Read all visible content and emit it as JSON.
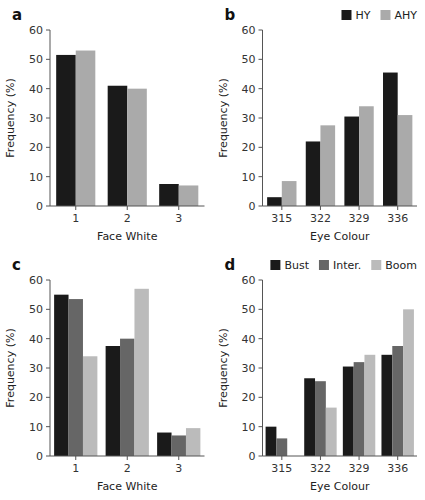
{
  "chart_data": [
    {
      "type": "bar",
      "title": "a",
      "categories": [
        "1",
        "2",
        "3"
      ],
      "series": [
        {
          "color": "#1a1a1a",
          "values": [
            51.5,
            41.0,
            7.5
          ]
        },
        {
          "color": "#aaaaaa",
          "values": [
            53.0,
            40.0,
            7.0
          ]
        }
      ],
      "x_label": "Face White",
      "y_label": "Frequency (%)",
      "ylim": [
        0,
        60
      ],
      "yticks": [
        0,
        10,
        20,
        30,
        40,
        50,
        60
      ],
      "grid": false
    },
    {
      "type": "bar",
      "title": "b",
      "categories": [
        "315",
        "322",
        "329",
        "336"
      ],
      "series": [
        {
          "name": "HY",
          "color": "#1a1a1a",
          "values": [
            3.0,
            22.0,
            30.5,
            45.5
          ]
        },
        {
          "name": "AHY",
          "color": "#aaaaaa",
          "values": [
            8.5,
            27.5,
            34.0,
            31.0
          ]
        }
      ],
      "x_label": "Eye Colour",
      "y_label": "Frequency (%)",
      "ylim": [
        0,
        60
      ],
      "yticks": [
        0,
        10,
        20,
        30,
        40,
        50,
        60
      ],
      "grid": false,
      "legend": "upper right"
    },
    {
      "type": "bar",
      "title": "c",
      "categories": [
        "1",
        "2",
        "3"
      ],
      "series": [
        {
          "color": "#1a1a1a",
          "values": [
            55.0,
            37.5,
            8.0
          ]
        },
        {
          "color": "#666666",
          "values": [
            53.5,
            40.0,
            7.0
          ]
        },
        {
          "color": "#bbbbbb",
          "values": [
            34.0,
            57.0,
            9.5
          ]
        }
      ],
      "x_label": "Face White",
      "y_label": "Frequency (%)",
      "ylim": [
        0,
        60
      ],
      "yticks": [
        0,
        10,
        20,
        30,
        40,
        50,
        60
      ],
      "grid": false
    },
    {
      "type": "bar",
      "title": "d",
      "categories": [
        "315",
        "322",
        "329",
        "336"
      ],
      "series": [
        {
          "name": "Bust",
          "color": "#1a1a1a",
          "values": [
            10.0,
            26.5,
            30.5,
            34.5
          ]
        },
        {
          "name": "Inter.",
          "color": "#666666",
          "values": [
            6.0,
            25.5,
            32.0,
            37.5
          ]
        },
        {
          "name": "Boom",
          "color": "#bbbbbb",
          "values": [
            0.0,
            16.5,
            34.5,
            50.0
          ]
        }
      ],
      "x_label": "Eye Colour",
      "y_label": "Frequency (%)",
      "ylim": [
        0,
        60
      ],
      "yticks": [
        0,
        10,
        20,
        30,
        40,
        50,
        60
      ],
      "grid": false,
      "legend": "upper right"
    }
  ]
}
